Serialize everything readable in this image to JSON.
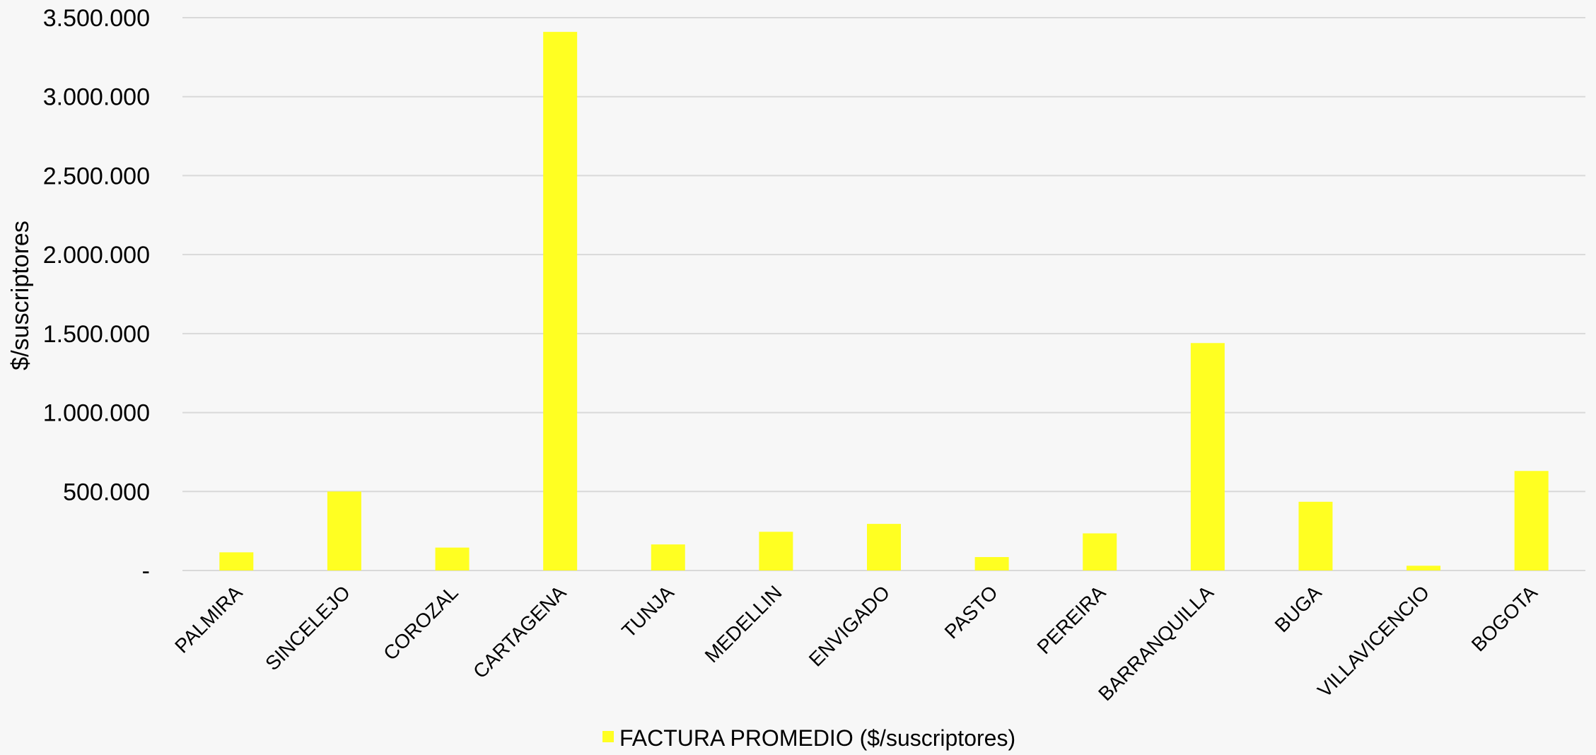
{
  "chart_data": {
    "type": "bar",
    "title": "",
    "xlabel": "",
    "ylabel": "$/suscriptores",
    "ylim": [
      0,
      3500000
    ],
    "yticks": [
      {
        "value": 0,
        "label": "-"
      },
      {
        "value": 500000,
        "label": "500.000"
      },
      {
        "value": 1000000,
        "label": "1.000.000"
      },
      {
        "value": 1500000,
        "label": "1.500.000"
      },
      {
        "value": 2000000,
        "label": "2.000.000"
      },
      {
        "value": 2500000,
        "label": "2.500.000"
      },
      {
        "value": 3000000,
        "label": "3.000.000"
      },
      {
        "value": 3500000,
        "label": "3.500.000"
      }
    ],
    "grid": true,
    "legend_position": "bottom",
    "categories": [
      "PALMIRA",
      "SINCELEJO",
      "COROZAL",
      "CARTAGENA",
      "TUNJA",
      "MEDELLIN",
      "ENVIGADO",
      "PASTO",
      "PEREIRA",
      "BARRANQUILLA",
      "BUGA",
      "VILLAVICENCIO",
      "BOGOTA"
    ],
    "series": [
      {
        "name": "FACTURA PROMEDIO ($/suscriptores)",
        "color": "#ffff22",
        "values": [
          115000,
          500000,
          145000,
          3410000,
          165000,
          245000,
          295000,
          85000,
          235000,
          1440000,
          435000,
          30000,
          630000
        ]
      }
    ]
  }
}
